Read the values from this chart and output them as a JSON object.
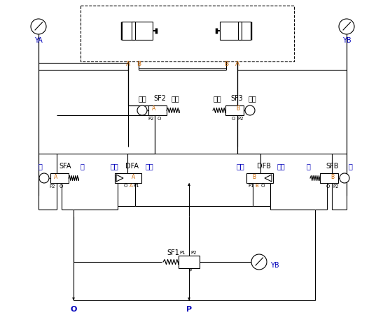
{
  "bg_color": "#ffffff",
  "line_color": "#000000",
  "blue": "#0000bb",
  "orange": "#cc6600",
  "figsize": [
    5.57,
    4.51
  ],
  "dpi": 100,
  "labels": {
    "YA": "YA",
    "YB_top": "YB",
    "YB_bottom": "YB",
    "O": "O",
    "P": "P",
    "SF1": "SF1",
    "SF2": "SF2",
    "SF3": "SF3",
    "SFA": "SFA",
    "SFB": "SFB",
    "DFA": "DFA",
    "DFB": "DFB",
    "kai": "开",
    "guan": "关",
    "dedian": "得电",
    "shidian": "失电",
    "shoudong": "手动",
    "zidong": "自动",
    "A": "A",
    "B": "B",
    "P1": "P1",
    "P2": "P2"
  }
}
